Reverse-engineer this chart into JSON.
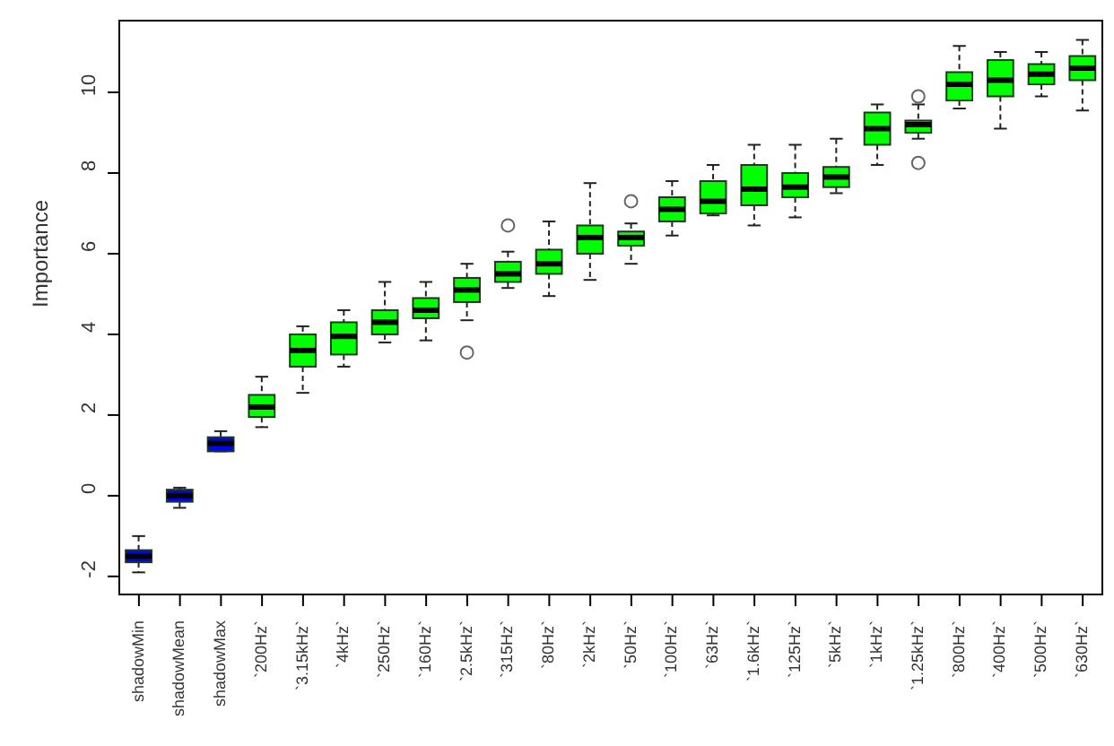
{
  "chart_data": {
    "type": "box",
    "ylabel": "Importance",
    "ylim": [
      -2.47,
      11.8
    ],
    "yticks": [
      -2,
      0,
      2,
      4,
      6,
      8,
      10
    ],
    "categories": [
      "shadowMin",
      "shadowMean",
      "shadowMax",
      "`200Hz`",
      "`3.15kHz`",
      "`4kHz`",
      "`250Hz`",
      "`160Hz`",
      "`2.5kHz`",
      "`315Hz`",
      "`80Hz`",
      "`2kHz`",
      "`50Hz`",
      "`100Hz`",
      "`63Hz`",
      "`1.6kHz`",
      "`125Hz`",
      "`5kHz`",
      "`1kHz`",
      "`1.25kHz`",
      "`800Hz`",
      "`400Hz`",
      "`500Hz`",
      "`630Hz`"
    ],
    "colors": [
      "#0000ff",
      "#0000ff",
      "#0000ff",
      "#00ff00",
      "#00ff00",
      "#00ff00",
      "#00ff00",
      "#00ff00",
      "#00ff00",
      "#00ff00",
      "#00ff00",
      "#00ff00",
      "#00ff00",
      "#00ff00",
      "#00ff00",
      "#00ff00",
      "#00ff00",
      "#00ff00",
      "#00ff00",
      "#00ff00",
      "#00ff00",
      "#00ff00",
      "#00ff00",
      "#00ff00"
    ],
    "boxes": [
      {
        "low": -1.9,
        "q1": -1.65,
        "median": -1.5,
        "q3": -1.35,
        "high": -1.0
      },
      {
        "low": -0.3,
        "q1": -0.15,
        "median": 0.0,
        "q3": 0.15,
        "high": 0.2
      },
      {
        "low": 1.1,
        "q1": 1.1,
        "median": 1.3,
        "q3": 1.45,
        "high": 1.6
      },
      {
        "low": 1.7,
        "q1": 1.95,
        "median": 2.2,
        "q3": 2.5,
        "high": 2.95
      },
      {
        "low": 2.55,
        "q1": 3.2,
        "median": 3.6,
        "q3": 4.0,
        "high": 4.2
      },
      {
        "low": 3.2,
        "q1": 3.5,
        "median": 3.95,
        "q3": 4.3,
        "high": 4.6
      },
      {
        "low": 3.8,
        "q1": 4.0,
        "median": 4.3,
        "q3": 4.6,
        "high": 5.3
      },
      {
        "low": 3.85,
        "q1": 4.4,
        "median": 4.6,
        "q3": 4.9,
        "high": 5.3
      },
      {
        "low": 4.35,
        "q1": 4.8,
        "median": 5.1,
        "q3": 5.4,
        "high": 5.75,
        "outliers": [
          3.55
        ]
      },
      {
        "low": 5.15,
        "q1": 5.3,
        "median": 5.5,
        "q3": 5.8,
        "high": 6.05,
        "outliers": [
          6.7
        ]
      },
      {
        "low": 4.95,
        "q1": 5.5,
        "median": 5.75,
        "q3": 6.1,
        "high": 6.8
      },
      {
        "low": 5.35,
        "q1": 6.0,
        "median": 6.4,
        "q3": 6.7,
        "high": 7.75
      },
      {
        "low": 5.75,
        "q1": 6.2,
        "median": 6.4,
        "q3": 6.55,
        "high": 6.75,
        "outliers": [
          7.3
        ]
      },
      {
        "low": 6.45,
        "q1": 6.8,
        "median": 7.1,
        "q3": 7.4,
        "high": 7.8
      },
      {
        "low": 6.95,
        "q1": 7.0,
        "median": 7.3,
        "q3": 7.8,
        "high": 8.2
      },
      {
        "low": 6.7,
        "q1": 7.2,
        "median": 7.6,
        "q3": 8.2,
        "high": 8.7
      },
      {
        "low": 6.9,
        "q1": 7.4,
        "median": 7.65,
        "q3": 8.0,
        "high": 8.7
      },
      {
        "low": 7.5,
        "q1": 7.65,
        "median": 7.9,
        "q3": 8.15,
        "high": 8.85
      },
      {
        "low": 8.2,
        "q1": 8.7,
        "median": 9.1,
        "q3": 9.5,
        "high": 9.7
      },
      {
        "low": 8.85,
        "q1": 9.0,
        "median": 9.2,
        "q3": 9.3,
        "high": 9.7,
        "outliers": [
          8.25,
          9.9
        ]
      },
      {
        "low": 9.6,
        "q1": 9.8,
        "median": 10.2,
        "q3": 10.5,
        "high": 11.15
      },
      {
        "low": 9.1,
        "q1": 9.9,
        "median": 10.3,
        "q3": 10.8,
        "high": 11.0
      },
      {
        "low": 9.9,
        "q1": 10.2,
        "median": 10.45,
        "q3": 10.7,
        "high": 11.0
      },
      {
        "low": 9.55,
        "q1": 10.3,
        "median": 10.6,
        "q3": 10.9,
        "high": 11.3
      }
    ]
  }
}
